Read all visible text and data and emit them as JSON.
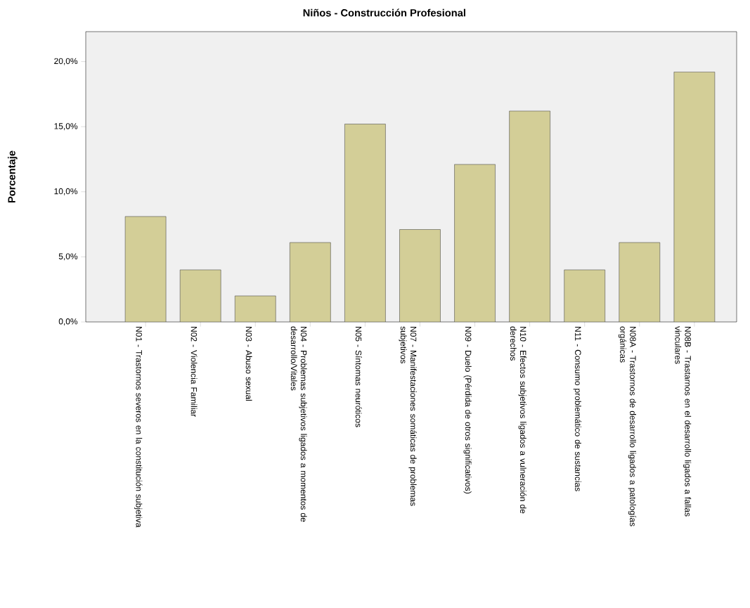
{
  "chart_data": {
    "type": "bar",
    "title": "Niños - Construcción Profesional",
    "ylabel": "Porcentaje",
    "categories": [
      "N01 - Trastornos severos en la constitución subjetiva",
      "N02 - Violencia Familiar",
      "N03 - Abuso sexual",
      "N04 - Problemas subjetivos ligados a momentos de desarrollo/Vitales",
      "N05 - Síntomas neuróticos",
      "N07 - Manifestaciones somáticas de problemas subjetivos",
      "N09 - Duelo (Pérdida de otros significativos)",
      "N10 - Efectos subjetivos ligados a vulneración de derechos",
      "N11 - Consumo problemático de sustancias",
      "N08A - Trastornos de desarrollo ligados a patologías orgánicas",
      "N08B - Trastarnos en el desarrollo ligados a fallas vinculares"
    ],
    "values": [
      8.1,
      4.0,
      2.0,
      6.1,
      15.2,
      7.1,
      12.1,
      16.2,
      4.0,
      6.1,
      19.2
    ],
    "color": "#d3ce97",
    "ylim": [
      0,
      22.3
    ],
    "yticks": [
      {
        "value": 0,
        "label": "0,0%"
      },
      {
        "value": 5,
        "label": "5,0%"
      },
      {
        "value": 10,
        "label": "10,0%"
      },
      {
        "value": 15,
        "label": "15,0%"
      },
      {
        "value": 20,
        "label": "20,0%"
      }
    ]
  }
}
